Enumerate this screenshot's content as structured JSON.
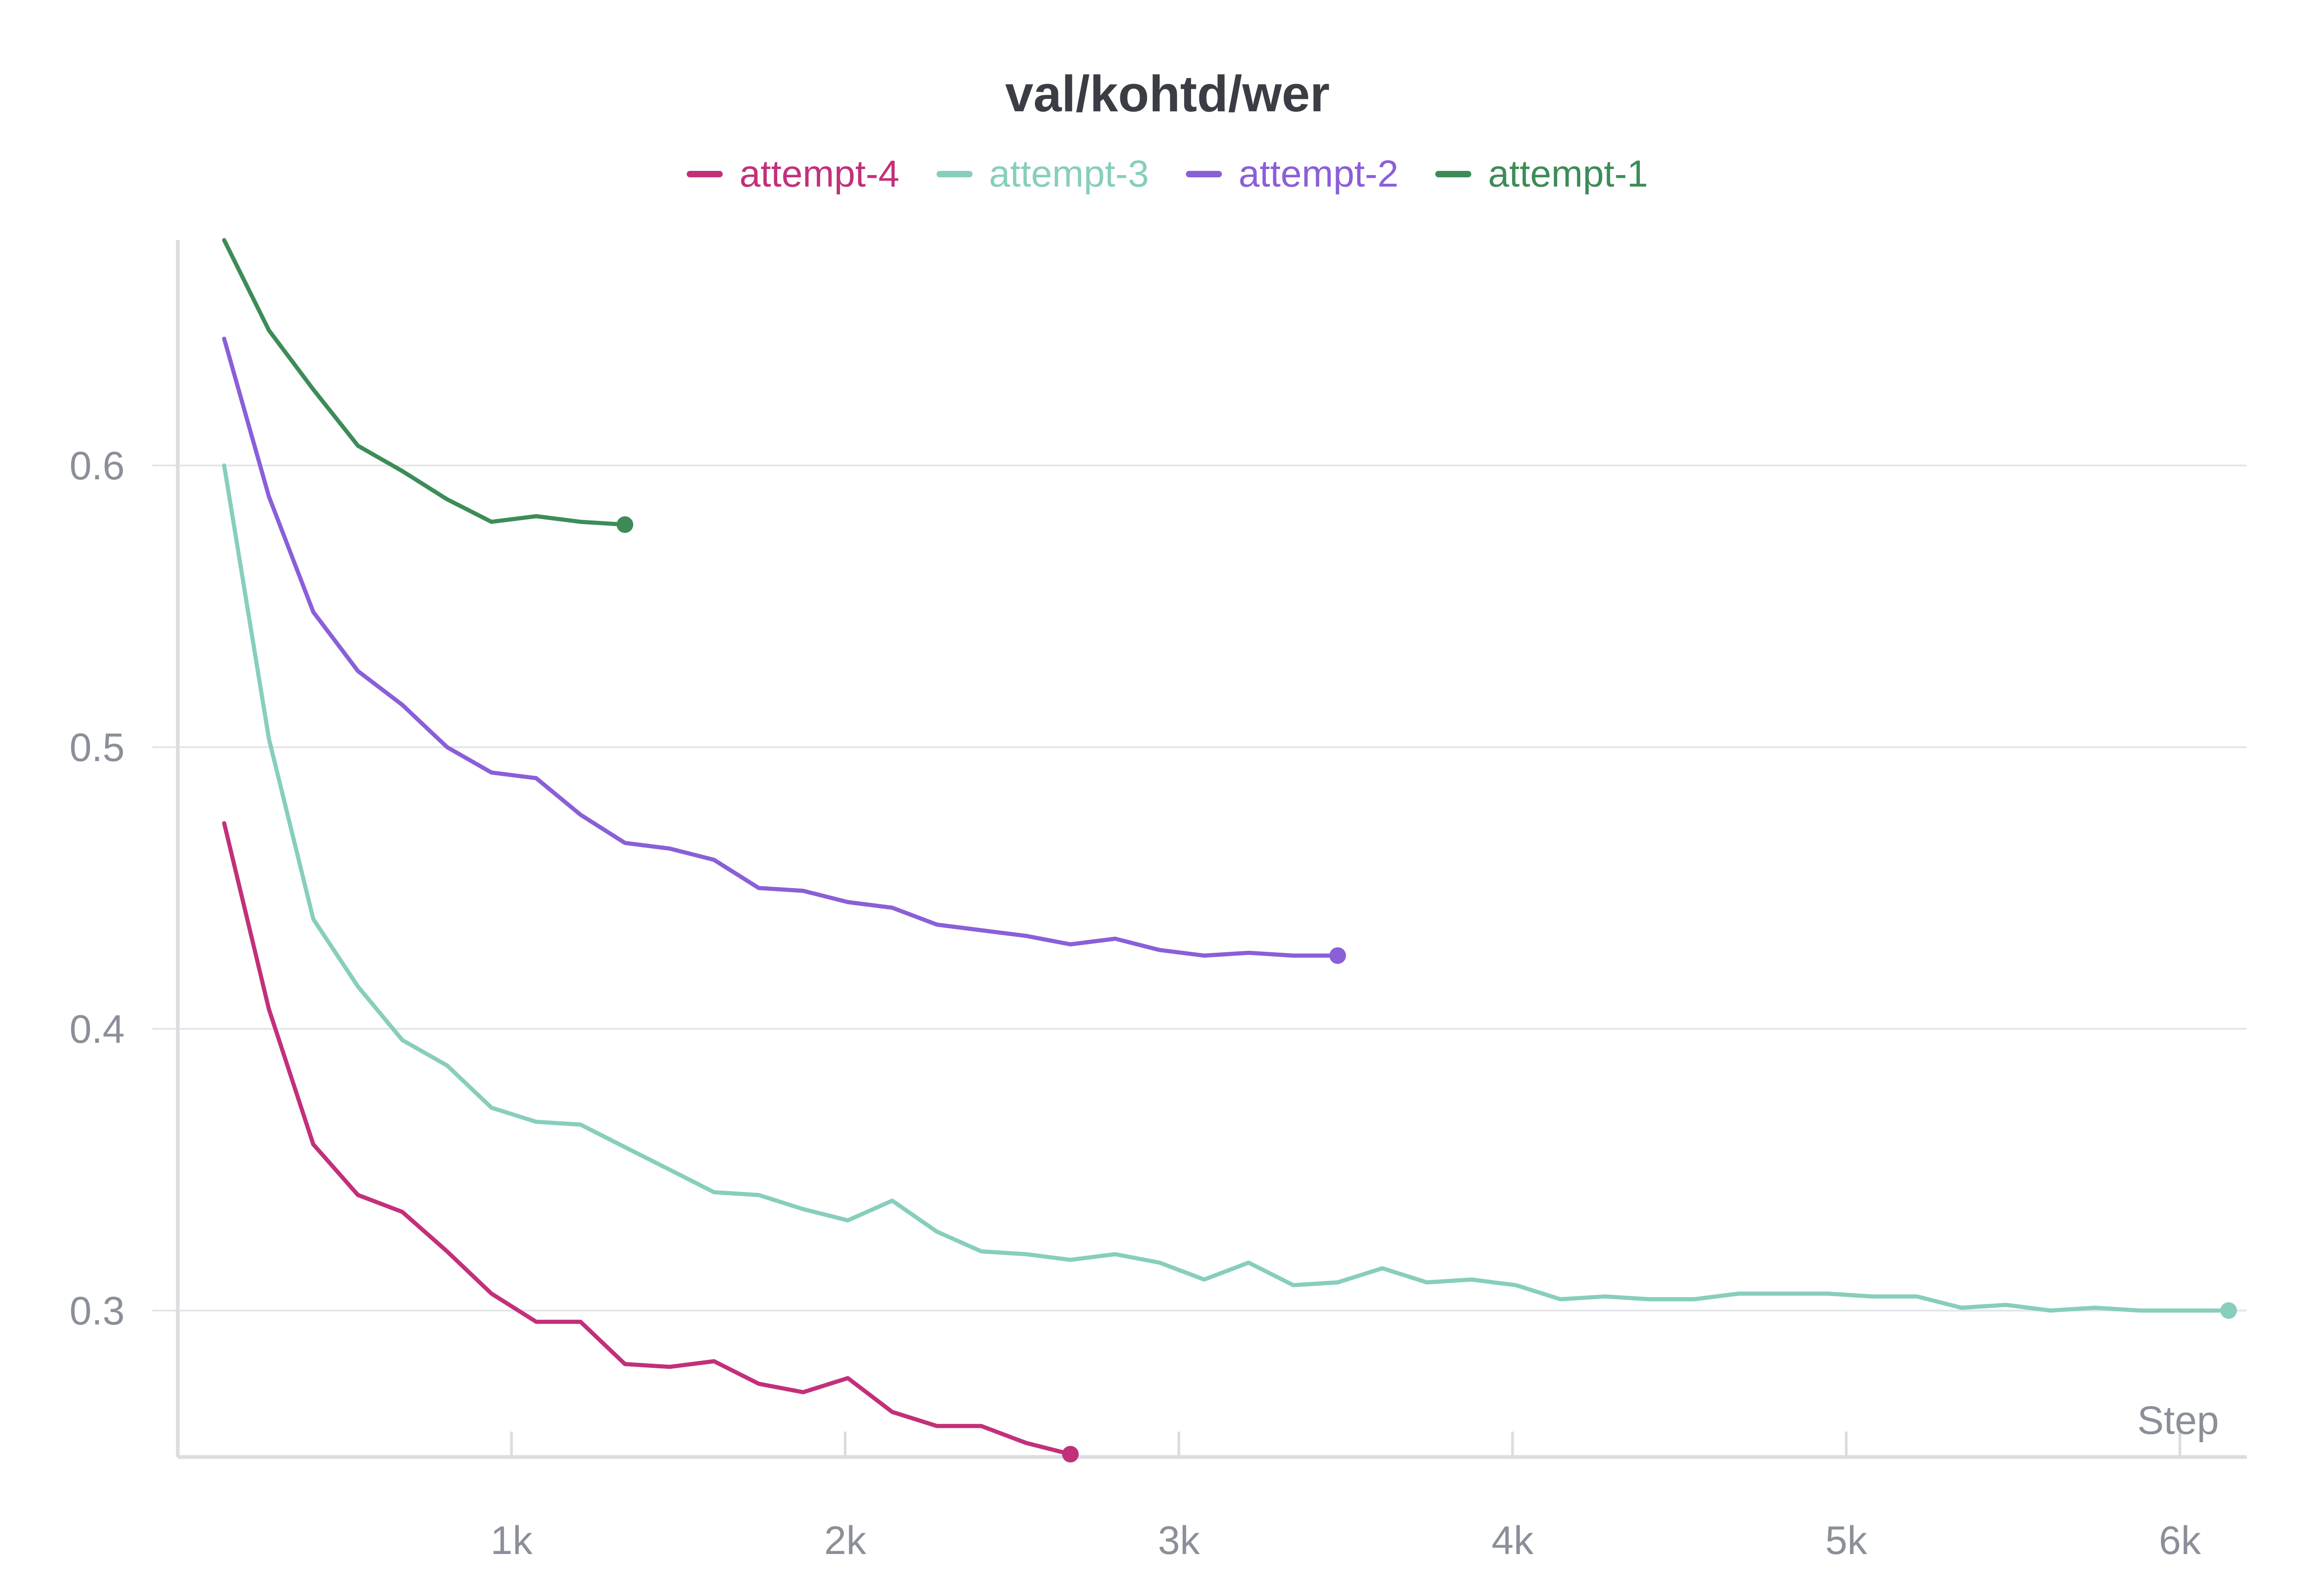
{
  "chart_data": {
    "type": "line",
    "title": "val/kohtd/wer",
    "xlabel": "Step",
    "ylabel": "",
    "xlim": [
      0,
      6200
    ],
    "ylim": [
      0.248,
      0.68
    ],
    "x_ticks": [
      {
        "value": 1000,
        "label": "1k"
      },
      {
        "value": 2000,
        "label": "2k"
      },
      {
        "value": 3000,
        "label": "3k"
      },
      {
        "value": 4000,
        "label": "4k"
      },
      {
        "value": 5000,
        "label": "5k"
      },
      {
        "value": 6000,
        "label": "6k"
      }
    ],
    "y_ticks": [
      {
        "value": 0.3,
        "label": "0.3"
      },
      {
        "value": 0.4,
        "label": "0.4"
      },
      {
        "value": 0.5,
        "label": "0.5"
      },
      {
        "value": 0.6,
        "label": "0.6"
      }
    ],
    "grid": "horizontal",
    "legend_placement": "top-center",
    "series": [
      {
        "name": "attempt-4",
        "color": "#c2307a",
        "points": [
          [
            139,
            0.473
          ],
          [
            273,
            0.407
          ],
          [
            406,
            0.359
          ],
          [
            540,
            0.341
          ],
          [
            673,
            0.335
          ],
          [
            807,
            0.321
          ],
          [
            940,
            0.306
          ],
          [
            1074,
            0.296
          ],
          [
            1207,
            0.296
          ],
          [
            1340,
            0.281
          ],
          [
            1474,
            0.28
          ],
          [
            1607,
            0.282
          ],
          [
            1741,
            0.274
          ],
          [
            1874,
            0.271
          ],
          [
            2008,
            0.276
          ],
          [
            2141,
            0.264
          ],
          [
            2275,
            0.259
          ],
          [
            2408,
            0.259
          ],
          [
            2542,
            0.253
          ],
          [
            2675,
            0.249
          ]
        ]
      },
      {
        "name": "attempt-3",
        "color": "#87cebc",
        "points": [
          [
            139,
            0.6
          ],
          [
            273,
            0.503
          ],
          [
            406,
            0.439
          ],
          [
            540,
            0.415
          ],
          [
            673,
            0.396
          ],
          [
            807,
            0.387
          ],
          [
            940,
            0.372
          ],
          [
            1074,
            0.367
          ],
          [
            1207,
            0.366
          ],
          [
            1340,
            0.358
          ],
          [
            1474,
            0.35
          ],
          [
            1607,
            0.342
          ],
          [
            1741,
            0.341
          ],
          [
            1874,
            0.336
          ],
          [
            2008,
            0.332
          ],
          [
            2141,
            0.339
          ],
          [
            2275,
            0.328
          ],
          [
            2408,
            0.321
          ],
          [
            2542,
            0.32
          ],
          [
            2675,
            0.318
          ],
          [
            2809,
            0.32
          ],
          [
            2942,
            0.317
          ],
          [
            3076,
            0.311
          ],
          [
            3209,
            0.317
          ],
          [
            3343,
            0.309
          ],
          [
            3476,
            0.31
          ],
          [
            3610,
            0.315
          ],
          [
            3743,
            0.31
          ],
          [
            3877,
            0.311
          ],
          [
            4010,
            0.309
          ],
          [
            4144,
            0.304
          ],
          [
            4277,
            0.305
          ],
          [
            4411,
            0.304
          ],
          [
            4544,
            0.304
          ],
          [
            4678,
            0.306
          ],
          [
            4811,
            0.306
          ],
          [
            4945,
            0.306
          ],
          [
            5078,
            0.305
          ],
          [
            5212,
            0.305
          ],
          [
            5345,
            0.301
          ],
          [
            5479,
            0.302
          ],
          [
            5612,
            0.3
          ],
          [
            5746,
            0.301
          ],
          [
            5879,
            0.3
          ],
          [
            6013,
            0.3
          ],
          [
            6146,
            0.3
          ]
        ]
      },
      {
        "name": "attempt-2",
        "color": "#8a5fd8",
        "points": [
          [
            139,
            0.645
          ],
          [
            273,
            0.589
          ],
          [
            406,
            0.548
          ],
          [
            540,
            0.527
          ],
          [
            673,
            0.515
          ],
          [
            807,
            0.5
          ],
          [
            940,
            0.491
          ],
          [
            1074,
            0.489
          ],
          [
            1207,
            0.476
          ],
          [
            1340,
            0.466
          ],
          [
            1474,
            0.464
          ],
          [
            1607,
            0.46
          ],
          [
            1741,
            0.45
          ],
          [
            1874,
            0.449
          ],
          [
            2008,
            0.445
          ],
          [
            2141,
            0.443
          ],
          [
            2275,
            0.437
          ],
          [
            2408,
            0.435
          ],
          [
            2542,
            0.433
          ],
          [
            2675,
            0.43
          ],
          [
            2809,
            0.432
          ],
          [
            2942,
            0.428
          ],
          [
            3076,
            0.426
          ],
          [
            3209,
            0.427
          ],
          [
            3343,
            0.426
          ],
          [
            3476,
            0.426
          ]
        ]
      },
      {
        "name": "attempt-1",
        "color": "#3d8c58",
        "points": [
          [
            139,
            0.68
          ],
          [
            273,
            0.648
          ],
          [
            406,
            0.627
          ],
          [
            540,
            0.607
          ],
          [
            673,
            0.598
          ],
          [
            807,
            0.588
          ],
          [
            940,
            0.58
          ],
          [
            1074,
            0.582
          ],
          [
            1207,
            0.58
          ],
          [
            1340,
            0.579
          ]
        ]
      }
    ]
  }
}
